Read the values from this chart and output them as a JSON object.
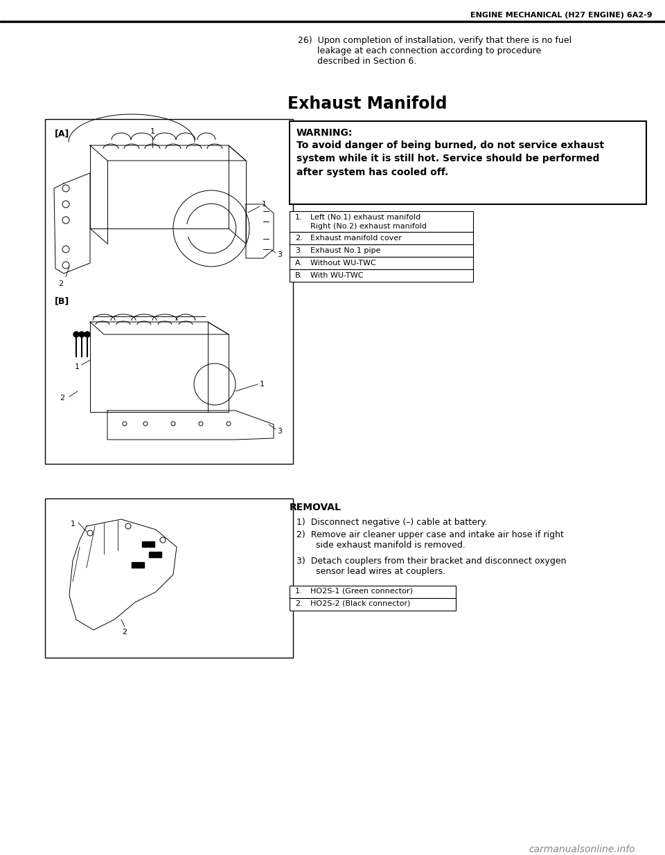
{
  "page_header_text": "ENGINE MECHANICAL (H27 ENGINE) 6A2-9",
  "para26_lines": [
    "26)  Upon completion of installation, verify that there is no fuel",
    "       leakage at each connection according to procedure",
    "       described in Section 6."
  ],
  "section_title": "Exhaust Manifold",
  "warning_title": "WARNING:",
  "warning_body": "To avoid danger of being burned, do not service exhaust\nsystem while it is still hot. Service should be performed\nafter system has cooled off.",
  "legend_rows": [
    [
      "1.",
      "Left (No.1) exhaust manifold\nRight (No.2) exhaust manifold"
    ],
    [
      "2.",
      "Exhaust manifold cover"
    ],
    [
      "3.",
      "Exhaust No.1 pipe"
    ],
    [
      "A.",
      "Without WU-TWC"
    ],
    [
      "B.",
      "With WU-TWC"
    ]
  ],
  "removal_title": "REMOVAL",
  "step1": "1)  Disconnect negative (–) cable at battery.",
  "step2a": "2)  Remove air cleaner upper case and intake air hose if right",
  "step2b": "       side exhaust manifold is removed.",
  "step3a": "3)  Detach couplers from their bracket and disconnect oxygen",
  "step3b": "       sensor lead wires at couplers.",
  "legend2_rows": [
    [
      "1.",
      "HO2S-1 (Green connector)"
    ],
    [
      "2.",
      "HO2S-2 (Black connector)"
    ]
  ],
  "watermark": "carmanualsonline.info",
  "bg_color": "#ffffff"
}
